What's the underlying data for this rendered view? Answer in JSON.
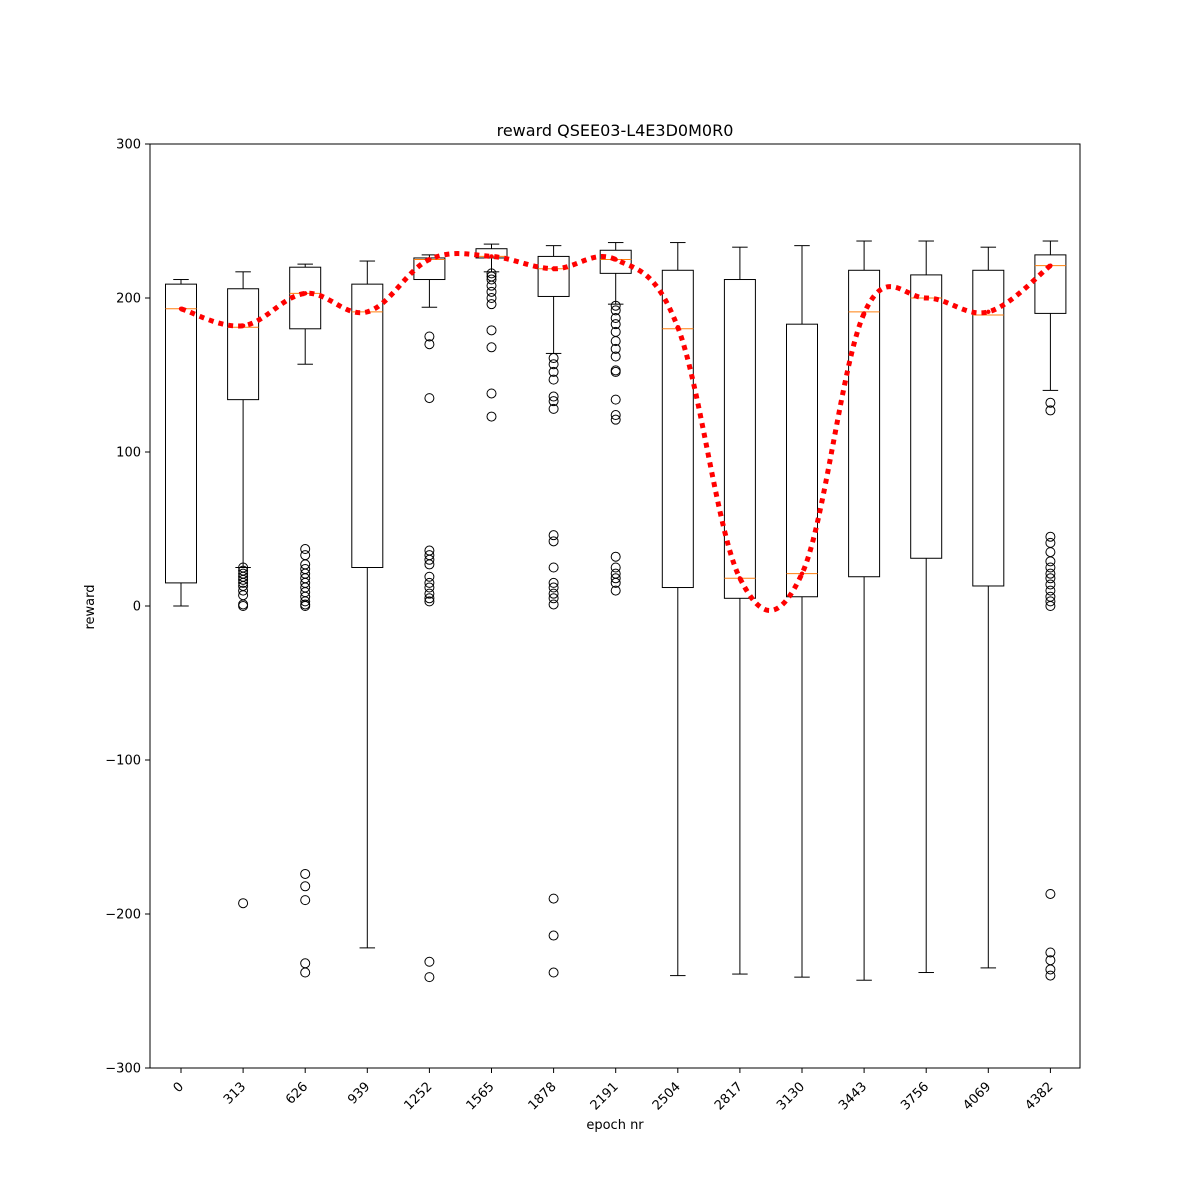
{
  "chart_data": {
    "type": "box",
    "title": "reward QSEE03-L4E3D0M0R0",
    "xlabel": "epoch nr",
    "ylabel": "reward",
    "ylim": [
      -300,
      300
    ],
    "yticks": [
      300,
      200,
      100,
      0,
      -100,
      -200,
      -300
    ],
    "ytick_labels": [
      "300",
      "200",
      "100",
      "0",
      "−100",
      "−200",
      "−300"
    ],
    "categories": [
      "0",
      "313",
      "626",
      "939",
      "1252",
      "1565",
      "1878",
      "2191",
      "2504",
      "2817",
      "3130",
      "3443",
      "3756",
      "4069",
      "4382"
    ],
    "grid": false,
    "colors": {
      "box": "#000000",
      "median": "#ff7f0e",
      "mean_line": "#ff0000",
      "flier": "#000000"
    },
    "boxes": [
      {
        "category": "0",
        "whisker_low": 0,
        "q1": 15,
        "median": 193,
        "q3": 209,
        "whisker_high": 212,
        "fliers": []
      },
      {
        "category": "313",
        "whisker_low": 25,
        "q1": 134,
        "median": 181,
        "q3": 206,
        "whisker_high": 217,
        "fliers": [
          25,
          23,
          21,
          19,
          17,
          15,
          13,
          10,
          7,
          1,
          0,
          -193
        ]
      },
      {
        "category": "626",
        "whisker_low": 157,
        "q1": 180,
        "median": 203,
        "q3": 220,
        "whisker_high": 222,
        "fliers": [
          37,
          33,
          27,
          24,
          21,
          18,
          15,
          12,
          9,
          6,
          3,
          1,
          0,
          -174,
          -182,
          -191,
          -232,
          -238
        ]
      },
      {
        "category": "939",
        "whisker_low": -222,
        "q1": 25,
        "median": 191,
        "q3": 209,
        "whisker_high": 224,
        "fliers": []
      },
      {
        "category": "1252",
        "whisker_low": 194,
        "q1": 212,
        "median": 225,
        "q3": 226,
        "whisker_high": 228,
        "fliers": [
          175,
          170,
          135,
          36,
          33,
          30,
          27,
          19,
          15,
          12,
          8,
          5,
          3,
          -231,
          -241
        ]
      },
      {
        "category": "1565",
        "whisker_low": 217,
        "q1": 226,
        "median": 227,
        "q3": 232,
        "whisker_high": 235,
        "fliers": [
          216,
          214,
          212,
          208,
          204,
          200,
          196,
          179,
          168,
          138,
          123
        ]
      },
      {
        "category": "1878",
        "whisker_low": 164,
        "q1": 201,
        "median": 219,
        "q3": 227,
        "whisker_high": 234,
        "fliers": [
          161,
          157,
          152,
          147,
          136,
          133,
          128,
          46,
          42,
          25,
          15,
          12,
          8,
          5,
          1,
          -190,
          -214,
          -238
        ]
      },
      {
        "category": "2191",
        "whisker_low": 196,
        "q1": 216,
        "median": 225,
        "q3": 231,
        "whisker_high": 236,
        "fliers": [
          195,
          192,
          187,
          183,
          178,
          172,
          167,
          162,
          153,
          152,
          134,
          124,
          121,
          32,
          25,
          21,
          18,
          15,
          10
        ]
      },
      {
        "category": "2504",
        "whisker_low": -240,
        "q1": 12,
        "median": 180,
        "q3": 218,
        "whisker_high": 236,
        "fliers": []
      },
      {
        "category": "2817",
        "whisker_low": -239,
        "q1": 5,
        "median": 18,
        "q3": 212,
        "whisker_high": 233,
        "fliers": []
      },
      {
        "category": "3130",
        "whisker_low": -241,
        "q1": 6,
        "median": 21,
        "q3": 183,
        "whisker_high": 234,
        "fliers": []
      },
      {
        "category": "3443",
        "whisker_low": -243,
        "q1": 19,
        "median": 191,
        "q3": 218,
        "whisker_high": 237,
        "fliers": []
      },
      {
        "category": "3756",
        "whisker_low": -238,
        "q1": 31,
        "median": 200,
        "q3": 215,
        "whisker_high": 237,
        "fliers": []
      },
      {
        "category": "4069",
        "whisker_low": -235,
        "q1": 13,
        "median": 189,
        "q3": 218,
        "whisker_high": 233,
        "fliers": []
      },
      {
        "category": "4382",
        "whisker_low": 140,
        "q1": 190,
        "median": 221,
        "q3": 228,
        "whisker_high": 237,
        "fliers": [
          132,
          127,
          45,
          41,
          35,
          29,
          25,
          21,
          18,
          14,
          10,
          6,
          3,
          0,
          -187,
          -225,
          -230,
          -236,
          -240
        ]
      }
    ],
    "mean_line": {
      "style": "dotted",
      "values": [
        193,
        182,
        203,
        191,
        225,
        227,
        219,
        225,
        181,
        18,
        21,
        190,
        200,
        191,
        221
      ]
    }
  }
}
